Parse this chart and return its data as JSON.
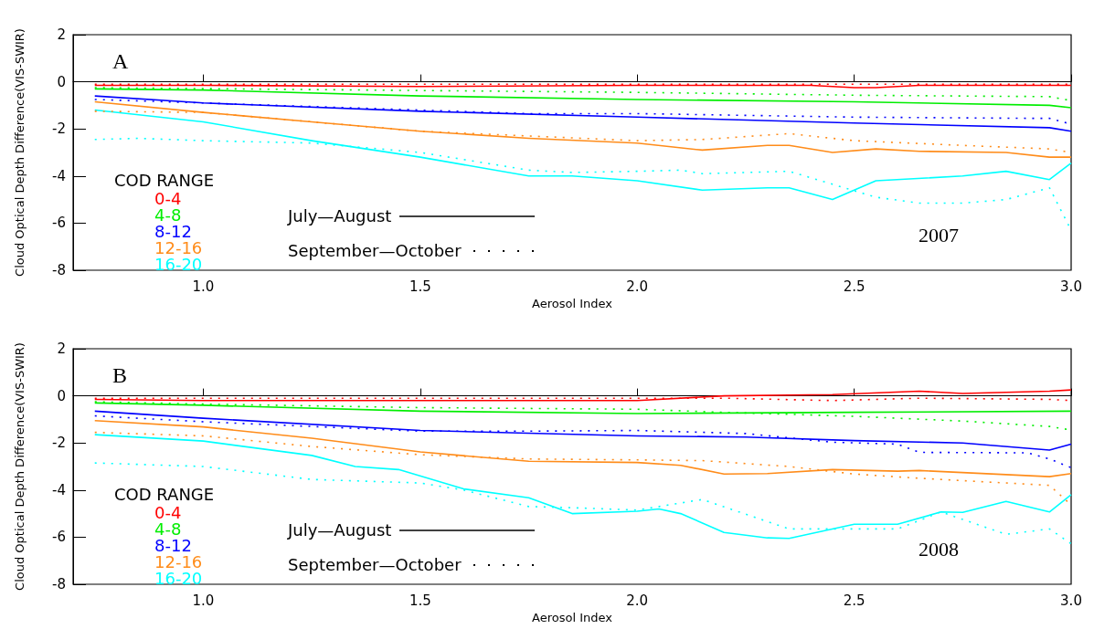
{
  "chart_data": [
    {
      "type": "line",
      "title": "A",
      "subtitle": "2007",
      "xlabel": "Aerosol Index",
      "ylabel": "Cloud Optical Depth Difference(VIS-SWIR)",
      "legend_title": "COD RANGE",
      "legend": "bottom left",
      "annotations": [
        "July—August",
        "September—October"
      ],
      "xlim": [
        0.7,
        3.0
      ],
      "xticks": [
        {
          "value": 1,
          "label": "1.0"
        },
        {
          "value": 1.5,
          "label": "1.5"
        },
        {
          "value": 2,
          "label": "2.0"
        },
        {
          "value": 2.5,
          "label": "2.5"
        },
        {
          "value": 3,
          "label": "3.0"
        }
      ],
      "ylim": [
        -8,
        2
      ],
      "yticks": [
        -8,
        -6,
        -4,
        -2,
        0,
        2
      ],
      "series": [
        {
          "name": "0-4",
          "color": "#ff0000",
          "line_style": "solid",
          "x": [
            0.75,
            1.0,
            1.5,
            2.0,
            2.4,
            2.5,
            2.55,
            2.65,
            3.0
          ],
          "values": [
            -0.15,
            -0.15,
            -0.2,
            -0.15,
            -0.15,
            -0.25,
            -0.25,
            -0.15,
            -0.15
          ]
        },
        {
          "name": "4-8",
          "color": "#00ee00",
          "line_style": "solid",
          "x": [
            0.75,
            1.0,
            1.5,
            2.0,
            2.5,
            2.95,
            3.0
          ],
          "values": [
            -0.3,
            -0.35,
            -0.6,
            -0.75,
            -0.85,
            -1.0,
            -1.1
          ]
        },
        {
          "name": "8-12",
          "color": "#0000ff",
          "line_style": "solid",
          "x": [
            0.75,
            1.0,
            1.5,
            2.0,
            2.5,
            2.95,
            3.0
          ],
          "values": [
            -0.6,
            -0.9,
            -1.25,
            -1.5,
            -1.75,
            -1.95,
            -2.1
          ]
        },
        {
          "name": "12-16",
          "color": "#ff8c1a",
          "line_style": "solid",
          "x": [
            0.75,
            1.0,
            1.25,
            1.5,
            1.75,
            2.0,
            2.15,
            2.3,
            2.35,
            2.45,
            2.55,
            2.65,
            2.85,
            2.95,
            3.0
          ],
          "values": [
            -0.85,
            -1.3,
            -1.7,
            -2.1,
            -2.4,
            -2.6,
            -2.9,
            -2.7,
            -2.7,
            -3.0,
            -2.85,
            -2.95,
            -3.0,
            -3.2,
            -3.2
          ]
        },
        {
          "name": "16-20",
          "color": "#00ffff",
          "line_style": "solid",
          "x": [
            0.75,
            1.0,
            1.25,
            1.5,
            1.75,
            1.85,
            2.0,
            2.15,
            2.3,
            2.35,
            2.45,
            2.55,
            2.75,
            2.85,
            2.95,
            3.0
          ],
          "values": [
            -1.2,
            -1.7,
            -2.5,
            -3.2,
            -4.0,
            -4.0,
            -4.2,
            -4.6,
            -4.5,
            -4.5,
            -5.0,
            -4.2,
            -4.0,
            -3.8,
            -4.15,
            -3.45
          ]
        },
        {
          "color": "#ff0000",
          "line_style": "dotted",
          "x": [
            0.75,
            1.5,
            2.0,
            2.5,
            2.95,
            3.0
          ],
          "values": [
            -0.1,
            -0.1,
            -0.1,
            -0.1,
            -0.1,
            -0.1
          ]
        },
        {
          "color": "#00ee00",
          "line_style": "dotted",
          "x": [
            0.75,
            1.5,
            2.0,
            2.5,
            2.95,
            3.0
          ],
          "values": [
            -0.25,
            -0.37,
            -0.45,
            -0.57,
            -0.63,
            -0.8
          ]
        },
        {
          "color": "#0000ff",
          "line_style": "dotted",
          "x": [
            0.75,
            1.0,
            1.5,
            1.75,
            2.0,
            2.5,
            2.9,
            2.95,
            3.0
          ],
          "values": [
            -0.75,
            -0.9,
            -1.2,
            -1.35,
            -1.35,
            -1.5,
            -1.55,
            -1.55,
            -1.8
          ]
        },
        {
          "color": "#ff8c1a",
          "line_style": "dotted",
          "x": [
            0.75,
            1.0,
            1.25,
            1.5,
            1.75,
            2.0,
            2.15,
            2.35,
            2.5,
            2.75,
            2.95,
            3.0
          ],
          "values": [
            -1.25,
            -1.3,
            -1.7,
            -2.1,
            -2.3,
            -2.5,
            -2.45,
            -2.2,
            -2.5,
            -2.7,
            -2.85,
            -3.0
          ]
        },
        {
          "color": "#00ffff",
          "line_style": "dotted",
          "x": [
            0.75,
            0.85,
            1.0,
            1.25,
            1.5,
            1.75,
            1.85,
            2.0,
            2.1,
            2.15,
            2.35,
            2.45,
            2.55,
            2.65,
            2.75,
            2.85,
            2.95,
            3.0
          ],
          "values": [
            -2.45,
            -2.4,
            -2.5,
            -2.6,
            -3.0,
            -3.75,
            -3.85,
            -3.8,
            -3.75,
            -3.9,
            -3.8,
            -4.35,
            -4.9,
            -5.15,
            -5.15,
            -5.0,
            -4.5,
            -6.3
          ]
        }
      ]
    },
    {
      "type": "line",
      "title": "B",
      "subtitle": "2008",
      "xlabel": "Aerosol Index",
      "ylabel": "Cloud Optical Depth Difference(VIS-SWIR)",
      "legend_title": "COD RANGE",
      "legend": "bottom left",
      "annotations": [
        "July—August",
        "September—October"
      ],
      "xlim": [
        0.7,
        3.0
      ],
      "xticks": [
        {
          "value": 1,
          "label": "1.0"
        },
        {
          "value": 1.5,
          "label": "1.5"
        },
        {
          "value": 2,
          "label": "2.0"
        },
        {
          "value": 2.5,
          "label": "2.5"
        },
        {
          "value": 3,
          "label": "3.0"
        }
      ],
      "ylim": [
        -8,
        2
      ],
      "yticks": [
        -8,
        -6,
        -4,
        -2,
        0,
        2
      ],
      "series": [
        {
          "name": "0-4",
          "color": "#ff0000",
          "line_style": "solid",
          "x": [
            0.75,
            1.0,
            2.0,
            2.2,
            2.45,
            2.65,
            2.75,
            2.95,
            3.0
          ],
          "values": [
            -0.15,
            -0.2,
            -0.2,
            0.0,
            0.05,
            0.2,
            0.1,
            0.2,
            0.25
          ]
        },
        {
          "name": "4-8",
          "color": "#00ee00",
          "line_style": "solid",
          "x": [
            0.75,
            1.0,
            1.5,
            2.0,
            2.5,
            3.0
          ],
          "values": [
            -0.3,
            -0.4,
            -0.65,
            -0.75,
            -0.7,
            -0.65
          ]
        },
        {
          "name": "8-12",
          "color": "#0000ff",
          "line_style": "solid",
          "x": [
            0.75,
            1.0,
            1.5,
            2.0,
            2.25,
            2.5,
            2.75,
            2.95,
            3.0
          ],
          "values": [
            -0.65,
            -0.95,
            -1.47,
            -1.7,
            -1.75,
            -1.9,
            -2.0,
            -2.3,
            -2.05
          ]
        },
        {
          "name": "12-16",
          "color": "#ff8c1a",
          "line_style": "solid",
          "x": [
            0.75,
            1.0,
            1.25,
            1.5,
            1.75,
            2.0,
            2.1,
            2.2,
            2.3,
            2.45,
            2.6,
            2.65,
            2.95,
            3.0
          ],
          "values": [
            -1.05,
            -1.32,
            -1.8,
            -2.38,
            -2.78,
            -2.83,
            -2.95,
            -3.32,
            -3.3,
            -3.13,
            -3.2,
            -3.17,
            -3.43,
            -3.3
          ]
        },
        {
          "name": "16-20",
          "color": "#00ffff",
          "line_style": "solid",
          "x": [
            0.75,
            1.0,
            1.25,
            1.35,
            1.45,
            1.6,
            1.75,
            1.85,
            2.0,
            2.05,
            2.1,
            2.2,
            2.3,
            2.35,
            2.5,
            2.6,
            2.7,
            2.75,
            2.85,
            2.95,
            3.0
          ],
          "values": [
            -1.65,
            -1.92,
            -2.53,
            -3.0,
            -3.13,
            -3.95,
            -4.33,
            -5.0,
            -4.9,
            -4.8,
            -5.0,
            -5.8,
            -6.03,
            -6.05,
            -5.45,
            -5.45,
            -4.93,
            -4.95,
            -4.48,
            -4.93,
            -4.2
          ]
        },
        {
          "color": "#ff0000",
          "line_style": "dotted",
          "x": [
            0.75,
            2.0,
            2.2,
            2.45,
            2.65,
            2.95,
            3.0
          ],
          "values": [
            -0.1,
            -0.1,
            -0.1,
            -0.2,
            -0.1,
            -0.15,
            -0.2
          ]
        },
        {
          "color": "#00ee00",
          "line_style": "dotted",
          "x": [
            0.75,
            1.0,
            1.5,
            2.0,
            2.2,
            2.5,
            2.75,
            2.95,
            3.0
          ],
          "values": [
            -0.25,
            -0.35,
            -0.5,
            -0.57,
            -0.7,
            -0.87,
            -1.07,
            -1.3,
            -1.45
          ]
        },
        {
          "color": "#0000ff",
          "line_style": "dotted",
          "x": [
            0.75,
            1.0,
            1.5,
            1.75,
            2.0,
            2.25,
            2.45,
            2.6,
            2.65,
            2.9,
            2.95,
            3.0
          ],
          "values": [
            -0.85,
            -1.1,
            -1.5,
            -1.5,
            -1.47,
            -1.6,
            -1.97,
            -2.05,
            -2.4,
            -2.42,
            -2.68,
            -3.05
          ]
        },
        {
          "color": "#ff8c1a",
          "line_style": "dotted",
          "x": [
            0.75,
            1.0,
            1.25,
            1.5,
            1.75,
            2.0,
            2.15,
            2.35,
            2.5,
            2.65,
            2.95,
            3.0
          ],
          "values": [
            -1.55,
            -1.7,
            -2.15,
            -2.5,
            -2.68,
            -2.72,
            -2.75,
            -3.0,
            -3.32,
            -3.5,
            -3.8,
            -4.63
          ]
        },
        {
          "color": "#00ffff",
          "line_style": "dotted",
          "x": [
            0.75,
            1.0,
            1.25,
            1.5,
            1.6,
            1.75,
            1.85,
            2.0,
            2.15,
            2.35,
            2.5,
            2.6,
            2.7,
            2.85,
            2.95,
            3.0
          ],
          "values": [
            -2.85,
            -3.0,
            -3.55,
            -3.7,
            -4.0,
            -4.7,
            -4.75,
            -4.85,
            -4.4,
            -5.65,
            -5.65,
            -5.65,
            -4.93,
            -5.88,
            -5.65,
            -6.28
          ]
        }
      ]
    }
  ]
}
